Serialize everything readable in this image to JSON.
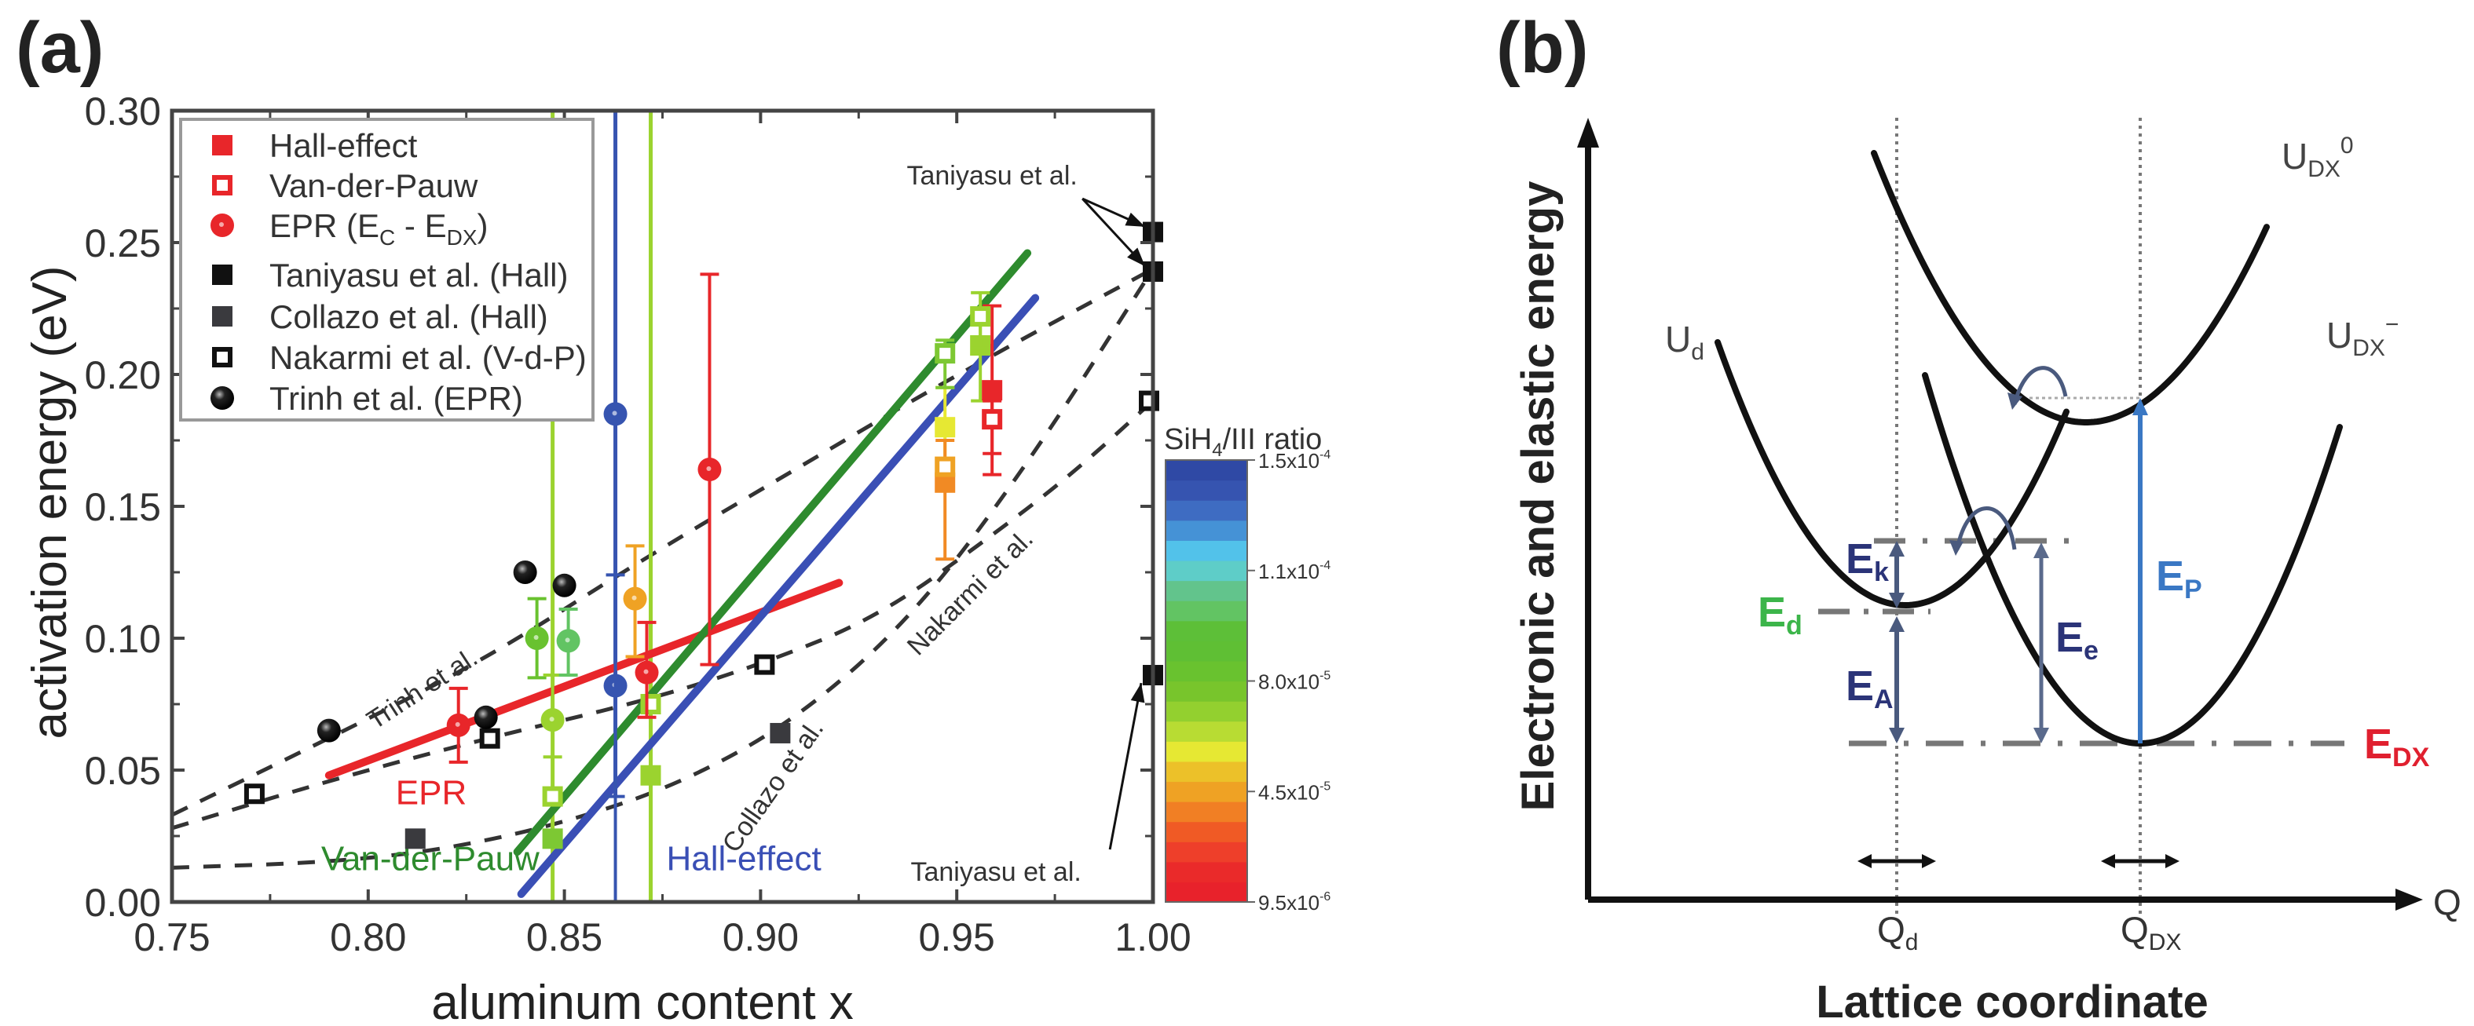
{
  "panels": {
    "a": {
      "label": "(a)"
    },
    "b": {
      "label": "(b)"
    }
  },
  "chart_data": [
    {
      "type": "scatter",
      "panel": "(a)",
      "title": "",
      "xlabel": "aluminum content x",
      "ylabel": "activation energy (eV)",
      "xlim": [
        0.75,
        1.0
      ],
      "ylim": [
        0.0,
        0.3
      ],
      "xticks": [
        "0.75",
        "0.80",
        "0.85",
        "0.90",
        "0.95",
        "1.00"
      ],
      "yticks": [
        "0.00",
        "0.05",
        "0.10",
        "0.15",
        "0.20",
        "0.25",
        "0.30"
      ],
      "xtick_values": [
        0.75,
        0.8,
        0.85,
        0.9,
        0.95,
        1.0
      ],
      "ytick_values": [
        0.0,
        0.05,
        0.1,
        0.15,
        0.2,
        0.25,
        0.3
      ],
      "grid": false,
      "legend_position": "top-left",
      "legend": [
        {
          "label": "Hall-effect",
          "marker": "filled-square",
          "color": "#e8262a"
        },
        {
          "label": "Van-der-Pauw",
          "marker": "open-square",
          "color": "#e8262a"
        },
        {
          "label": "EPR (E",
          "sub1": "C",
          "mid": " - E",
          "sub2": "DX",
          "tail": ")",
          "marker": "circle",
          "color": "#e8262a"
        },
        {
          "label": "Taniyasu et al. (Hall)",
          "marker": "filled-square",
          "color": "#111111"
        },
        {
          "label": "Collazo et al. (Hall)",
          "marker": "filled-square",
          "color": "#3a3a3e"
        },
        {
          "label": "Nakarmi et al. (V-d-P)",
          "marker": "open-square",
          "color": "#111111"
        },
        {
          "label": "Trinh et al. (EPR)",
          "marker": "sphere",
          "color": "#111111"
        }
      ],
      "colorbar": {
        "title": "SiH",
        "title_sub": "4",
        "title_tail": "/III ratio",
        "ticks": [
          {
            "mantissa": "1.5x10",
            "exp": "-4"
          },
          {
            "mantissa": "1.1x10",
            "exp": "-4"
          },
          {
            "mantissa": "8.0x10",
            "exp": "-5"
          },
          {
            "mantissa": "4.5x10",
            "exp": "-5"
          },
          {
            "mantissa": "9.5x10",
            "exp": "-6"
          }
        ],
        "range": [
          9.5e-06,
          0.00015
        ],
        "colors_bottom_to_top": [
          "#e8222b",
          "#ea2a2a",
          "#ee3f2a",
          "#f05a25",
          "#f17f24",
          "#efa224",
          "#ecc129",
          "#e6e833",
          "#b8dc33",
          "#93d02f",
          "#78c52c",
          "#69c22f",
          "#5fbf34",
          "#5dbf38",
          "#62c463",
          "#62c48c",
          "#5ecdc8",
          "#52c2ea",
          "#4592d6",
          "#3e6cc2",
          "#3654b0",
          "#2f49a5"
        ]
      },
      "series": [
        {
          "name": "Hall-effect (this work)",
          "marker": "filled-square",
          "points": [
            {
              "x": 0.847,
              "y": 0.024,
              "color": "#7dc833"
            },
            {
              "x": 0.872,
              "y": 0.048,
              "color": "#9bd32f"
            },
            {
              "x": 0.947,
              "y": 0.18,
              "color": "#e6e833",
              "yerr": [
                0.165,
                0.195
              ]
            },
            {
              "x": 0.947,
              "y": 0.159,
              "color": "#f18a24",
              "yerr": [
                0.13,
                0.175
              ]
            },
            {
              "x": 0.956,
              "y": 0.211,
              "color": "#9bd32f",
              "yerr": [
                0.19,
                0.222
              ]
            },
            {
              "x": 0.959,
              "y": 0.194,
              "color": "#e8262a",
              "yerr": [
                0.162,
                0.226
              ]
            }
          ]
        },
        {
          "name": "Van-der-Pauw (this work)",
          "marker": "open-square",
          "points": [
            {
              "x": 0.847,
              "y": 0.04,
              "color": "#9bd32f"
            },
            {
              "x": 0.872,
              "y": 0.075,
              "color": "#9bd32f"
            },
            {
              "x": 0.947,
              "y": 0.208,
              "color": "#7dc833",
              "yerr": [
                0.195,
                0.213
              ]
            },
            {
              "x": 0.947,
              "y": 0.165,
              "color": "#efa224"
            },
            {
              "x": 0.956,
              "y": 0.222,
              "color": "#9bd32f",
              "yerr": [
                0.21,
                0.231
              ]
            },
            {
              "x": 0.959,
              "y": 0.183,
              "color": "#e8262a",
              "yerr": [
                0.17,
                0.19
              ]
            }
          ]
        },
        {
          "name": "EPR (Ec - Edx) (this work)",
          "marker": "circle",
          "points": [
            {
              "x": 0.823,
              "y": 0.067,
              "color": "#e8262a",
              "yerr": [
                0.053,
                0.081
              ]
            },
            {
              "x": 0.843,
              "y": 0.1,
              "color": "#69c22f",
              "yerr": [
                0.085,
                0.115
              ]
            },
            {
              "x": 0.847,
              "y": 0.069,
              "color": "#9bd32f",
              "yerr": [
                0.055,
                0.086
              ]
            },
            {
              "x": 0.851,
              "y": 0.099,
              "color": "#62c463",
              "yerr": [
                0.086,
                0.111
              ]
            },
            {
              "x": 0.863,
              "y": 0.082,
              "color": "#3654b0",
              "yerr": [
                0.04,
                0.124
              ]
            },
            {
              "x": 0.863,
              "y": 0.185,
              "color": "#3654b0",
              "yerr": [
                0.0,
                0.3
              ]
            },
            {
              "x": 0.868,
              "y": 0.115,
              "color": "#efa224",
              "yerr": [
                0.093,
                0.135
              ]
            },
            {
              "x": 0.871,
              "y": 0.087,
              "color": "#e8262a",
              "yerr": [
                0.07,
                0.106
              ]
            },
            {
              "x": 0.887,
              "y": 0.164,
              "color": "#e8262a",
              "yerr": [
                0.09,
                0.238
              ]
            }
          ]
        },
        {
          "name": "Taniyasu et al. (Hall)",
          "marker": "filled-square",
          "color": "#111111",
          "points": [
            {
              "x": 1.0,
              "y": 0.254
            },
            {
              "x": 1.0,
              "y": 0.239
            },
            {
              "x": 1.0,
              "y": 0.086
            }
          ]
        },
        {
          "name": "Collazo et al. (Hall)",
          "marker": "filled-square",
          "color": "#3a3a3e",
          "points": [
            {
              "x": 0.812,
              "y": 0.024
            },
            {
              "x": 0.905,
              "y": 0.064
            }
          ]
        },
        {
          "name": "Nakarmi et al. (V-d-P)",
          "marker": "open-square",
          "color": "#111111",
          "points": [
            {
              "x": 0.771,
              "y": 0.041
            },
            {
              "x": 0.831,
              "y": 0.062
            },
            {
              "x": 0.901,
              "y": 0.09
            },
            {
              "x": 0.999,
              "y": 0.19
            }
          ]
        },
        {
          "name": "Trinh et al. (EPR)",
          "marker": "sphere",
          "color": "#111111",
          "points": [
            {
              "x": 0.79,
              "y": 0.065
            },
            {
              "x": 0.83,
              "y": 0.07
            },
            {
              "x": 0.84,
              "y": 0.125
            },
            {
              "x": 0.85,
              "y": 0.12
            }
          ]
        }
      ],
      "vertical_lines": [
        {
          "x": 0.847,
          "color": "#9bd32f"
        },
        {
          "x": 0.863,
          "color": "#3a4fb5",
          "from_y": 0.04
        },
        {
          "x": 0.872,
          "color": "#9bd32f"
        }
      ],
      "fit_lines": [
        {
          "name": "EPR",
          "color": "#e8262a",
          "points": [
            [
              0.79,
              0.048
            ],
            [
              0.92,
              0.121
            ]
          ],
          "label": "EPR",
          "label_at": [
            0.807,
            0.037
          ]
        },
        {
          "name": "Van-der-Pauw",
          "color": "#2e8b2e",
          "points": [
            [
              0.838,
              0.019
            ],
            [
              0.968,
              0.246
            ]
          ],
          "label": "Van-der-Pauw",
          "label_at": [
            0.788,
            0.012
          ]
        },
        {
          "name": "Hall-effect",
          "color": "#3a4fb5",
          "points": [
            [
              0.839,
              0.003
            ],
            [
              0.97,
              0.229
            ]
          ],
          "label": "Hall-effect",
          "label_at": [
            0.876,
            0.012
          ]
        }
      ],
      "dashed_curves": [
        {
          "name": "Trinh et al.",
          "points": [
            [
              0.75,
              0.033
            ],
            [
              0.79,
              0.062
            ],
            [
              0.83,
              0.092
            ],
            [
              0.87,
              0.13
            ],
            [
              0.91,
              0.165
            ],
            [
              0.95,
              0.2
            ],
            [
              1.0,
              0.24
            ]
          ],
          "label": "Trinh et al.",
          "label_at": [
            0.815,
            0.078
          ],
          "label_angle": -33
        },
        {
          "name": "Nakarmi et al.",
          "points": [
            [
              0.75,
              0.028
            ],
            [
              0.79,
              0.046
            ],
            [
              0.83,
              0.062
            ],
            [
              0.87,
              0.076
            ],
            [
              0.9,
              0.09
            ],
            [
              0.93,
              0.108
            ],
            [
              0.96,
              0.14
            ],
            [
              0.98,
              0.163
            ],
            [
              1.0,
              0.19
            ]
          ],
          "label": "Nakarmi et al.",
          "label_at": [
            0.955,
            0.115
          ],
          "label_angle": -45
        },
        {
          "name": "Collazo et al.",
          "points": [
            [
              0.75,
              0.013
            ],
            [
              0.79,
              0.015
            ],
            [
              0.82,
              0.02
            ],
            [
              0.85,
              0.03
            ],
            [
              0.88,
              0.045
            ],
            [
              0.91,
              0.07
            ],
            [
              0.94,
              0.11
            ],
            [
              0.97,
              0.17
            ],
            [
              1.0,
              0.24
            ]
          ],
          "label": "Collazo et al.",
          "label_at": [
            0.905,
            0.042
          ],
          "label_angle": -55
        }
      ],
      "annotations": [
        {
          "text": "Taniyasu et al.",
          "at": [
            0.959,
            0.272
          ],
          "arrows_to": [
            [
              0.998,
              0.256
            ],
            [
              0.998,
              0.241
            ]
          ]
        },
        {
          "text": "Taniyasu et al.",
          "at": [
            0.96,
            0.008
          ],
          "arrows_to": [
            [
              0.997,
              0.083
            ]
          ]
        }
      ]
    }
  ],
  "diagram_b": {
    "y_axis_label": "Electronic and elastic energy",
    "x_axis_label": "Lattice coordinate",
    "x_axis_end_label": "Q",
    "curves": [
      {
        "name": "U",
        "sub": "d",
        "sup": ""
      },
      {
        "name": "U",
        "sub": "DX",
        "sup": "0"
      },
      {
        "name": "U",
        "sub": "DX",
        "sup": "−"
      }
    ],
    "coordinates": [
      {
        "name": "Q",
        "sub": "d"
      },
      {
        "name": "Q",
        "sub": "DX"
      }
    ],
    "energies": [
      {
        "name": "E",
        "sub": "k",
        "color": "#2b3478"
      },
      {
        "name": "E",
        "sub": "d",
        "color": "#3cb54a"
      },
      {
        "name": "E",
        "sub": "A",
        "color": "#2b3478"
      },
      {
        "name": "E",
        "sub": "e",
        "color": "#2b3478"
      },
      {
        "name": "E",
        "sub": "P",
        "color": "#3a78c4"
      },
      {
        "name": "E",
        "sub": "DX",
        "color": "#e0202f"
      }
    ]
  }
}
